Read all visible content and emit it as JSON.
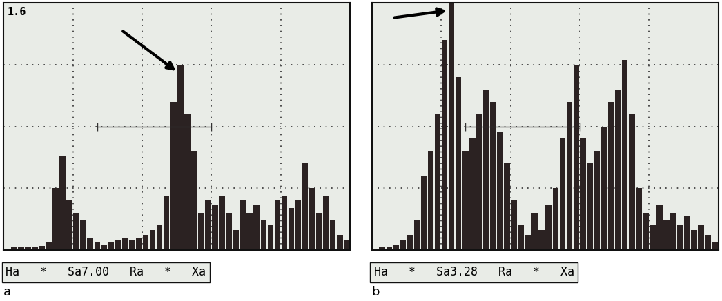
{
  "chart_data": [
    {
      "type": "bar",
      "title": "a",
      "corner_label": "1.6",
      "footer": "Ha   *   Sa7.00   Ra   *   Xa",
      "color": "#2b2222",
      "grid": true,
      "tick_labels": false,
      "xlim": [
        0,
        100
      ],
      "ylim": [
        0,
        100
      ],
      "xticks": [
        0,
        20,
        40,
        60,
        80,
        100
      ],
      "yticks": [
        0,
        25,
        50,
        75,
        100
      ],
      "x": [
        1,
        3,
        5,
        7,
        9,
        11,
        13,
        15,
        17,
        19,
        21,
        23,
        25,
        27,
        29,
        31,
        33,
        35,
        37,
        39,
        41,
        43,
        45,
        47,
        49,
        51,
        53,
        55,
        57,
        59,
        61,
        63,
        65,
        67,
        69,
        71,
        73,
        75,
        77,
        79,
        81,
        83,
        85,
        87,
        89,
        91,
        93,
        95,
        97,
        99
      ],
      "values": [
        0.5,
        1,
        1,
        1,
        1,
        1.5,
        3,
        25,
        38,
        20,
        15,
        12,
        5,
        3,
        2,
        3,
        4,
        5,
        4,
        5,
        6,
        8,
        10,
        22,
        60,
        75,
        55,
        40,
        15,
        20,
        18,
        22,
        15,
        8,
        20,
        15,
        18,
        12,
        10,
        20,
        22,
        17,
        20,
        35,
        25,
        15,
        22,
        12,
        6,
        4
      ]
    },
    {
      "type": "bar",
      "title": "b",
      "footer": "Ha   *   Sa3.28   Ra   *   Xa",
      "color": "#2b2222",
      "grid": true,
      "tick_labels": false,
      "xlim": [
        0,
        100
      ],
      "ylim": [
        0,
        100
      ],
      "xticks": [
        0,
        20,
        40,
        60,
        80,
        100
      ],
      "yticks": [
        0,
        25,
        50,
        75,
        100
      ],
      "x": [
        1,
        3,
        5,
        7,
        9,
        11,
        13,
        15,
        17,
        19,
        21,
        23,
        25,
        27,
        29,
        31,
        33,
        35,
        37,
        39,
        41,
        43,
        45,
        47,
        49,
        51,
        53,
        55,
        57,
        59,
        61,
        63,
        65,
        67,
        69,
        71,
        73,
        75,
        77,
        79,
        81,
        83,
        85,
        87,
        89,
        91,
        93,
        95,
        97,
        99
      ],
      "values": [
        0.5,
        1,
        1,
        2,
        4,
        6,
        12,
        30,
        40,
        55,
        85,
        100,
        70,
        40,
        45,
        55,
        65,
        60,
        48,
        35,
        20,
        10,
        6,
        15,
        8,
        18,
        25,
        45,
        60,
        75,
        45,
        35,
        40,
        50,
        60,
        65,
        77,
        55,
        25,
        15,
        10,
        18,
        12,
        15,
        10,
        14,
        8,
        10,
        6,
        3
      ]
    }
  ]
}
